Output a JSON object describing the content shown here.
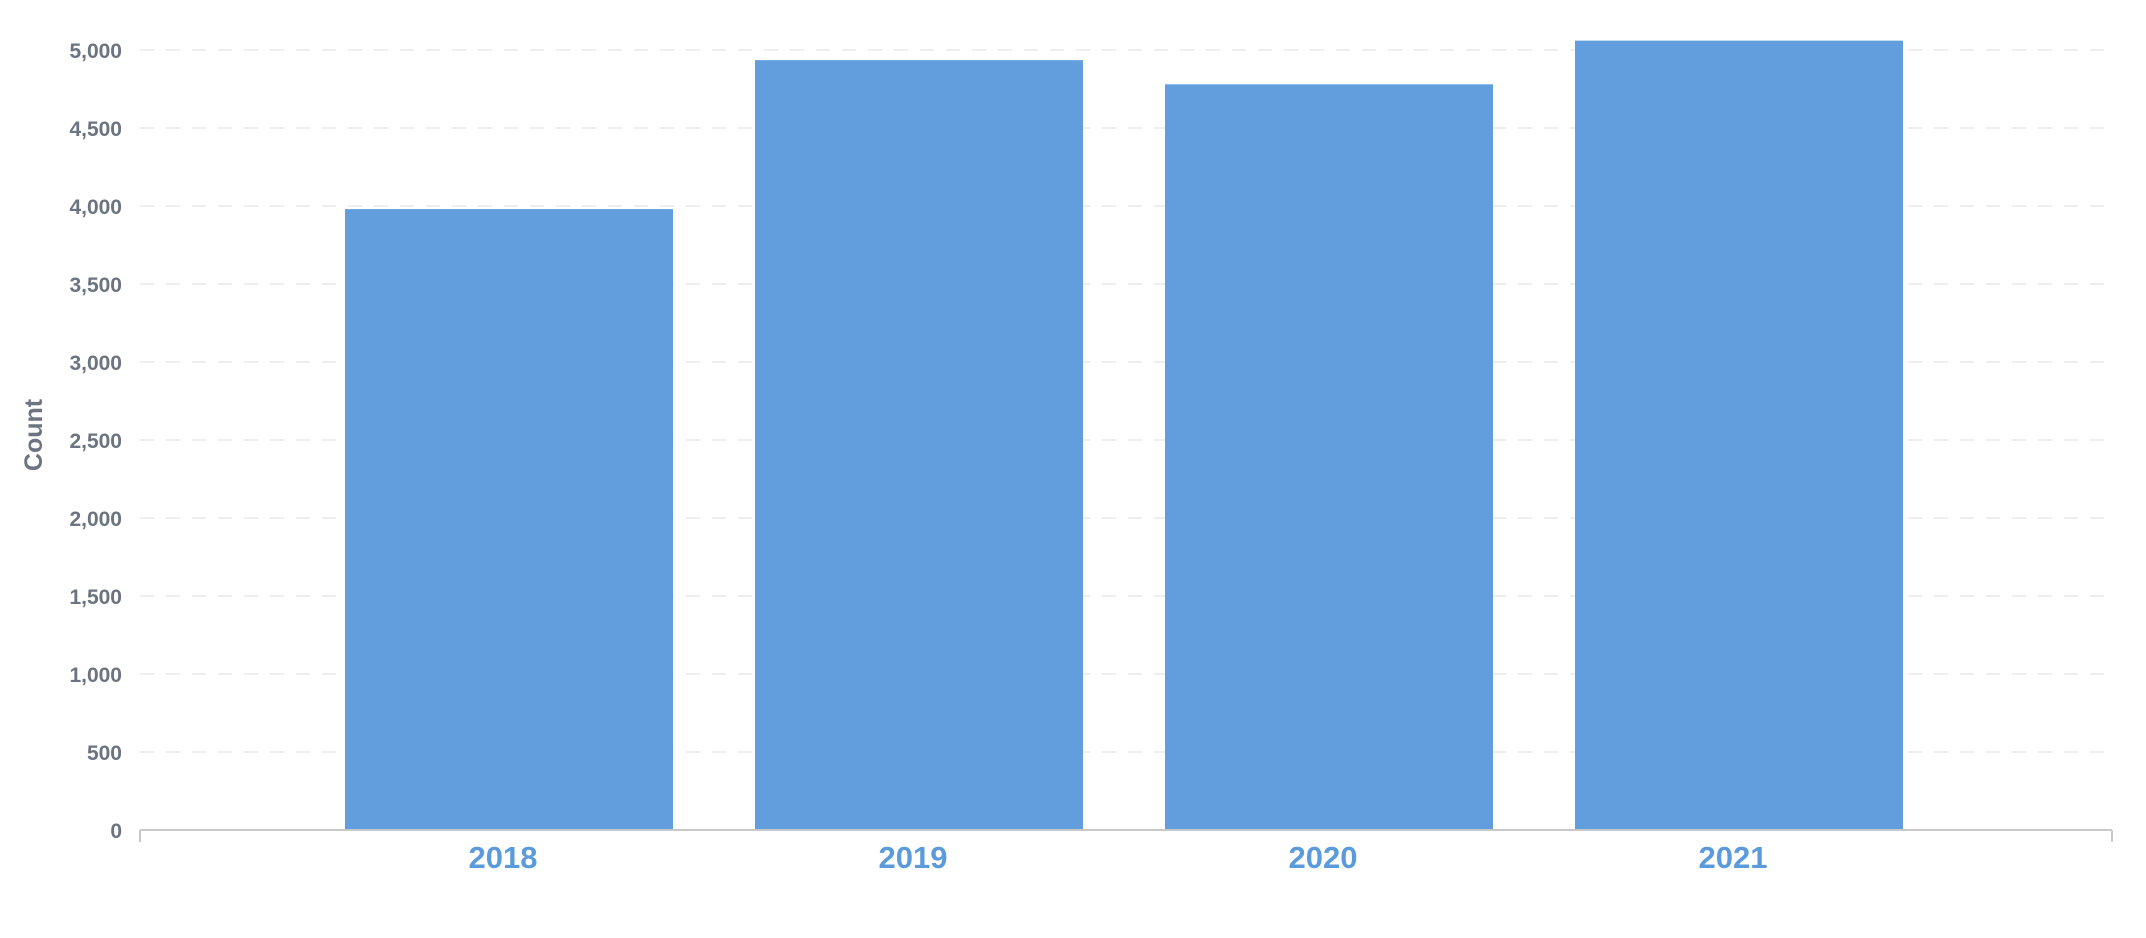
{
  "chart_data": {
    "type": "bar",
    "title": "",
    "xlabel": "",
    "ylabel": "Count",
    "categories": [
      "2018",
      "2019",
      "2020",
      "2021"
    ],
    "values": [
      3980,
      4935,
      4780,
      5060
    ],
    "ylim": [
      0,
      5000
    ],
    "yticks": [
      0,
      500,
      1000,
      1500,
      2000,
      2500,
      3000,
      3500,
      4000,
      4500,
      5000
    ],
    "ytick_labels": [
      "0",
      "500",
      "1,000",
      "1,500",
      "2,000",
      "2,500",
      "3,000",
      "3,500",
      "4,000",
      "4,500",
      "5,000"
    ],
    "grid": true,
    "legend": "none",
    "colors": {
      "bar": "#629ddd",
      "x_tick": "#5b9bdc",
      "y_tick": "#6b7480"
    }
  }
}
